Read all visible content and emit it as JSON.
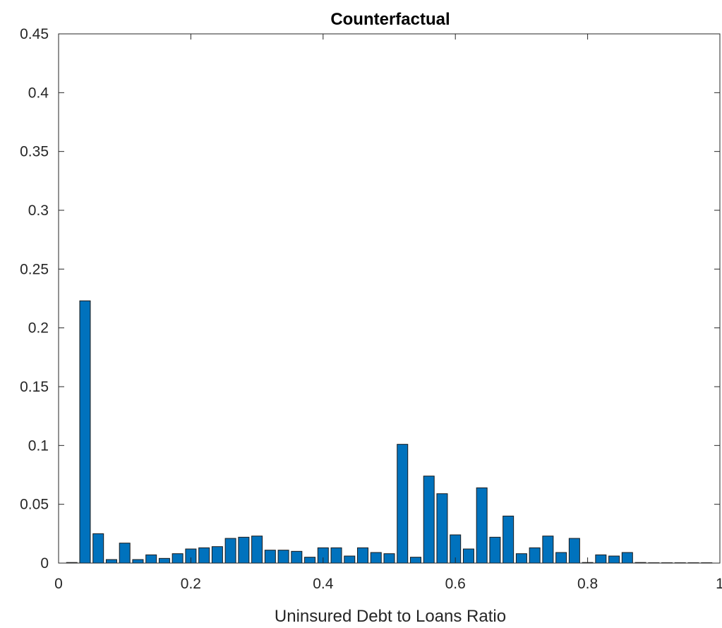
{
  "chart_data": {
    "type": "bar",
    "title": "Counterfactual",
    "xlabel": "Uninsured Debt to Loans Ratio",
    "ylabel": "",
    "xlim": [
      0,
      1
    ],
    "ylim": [
      0,
      0.45
    ],
    "xticks": [
      0,
      0.2,
      0.4,
      0.6,
      0.8,
      1
    ],
    "xtick_labels": [
      "0",
      "0.2",
      "0.4",
      "0.6",
      "0.8",
      "1"
    ],
    "yticks": [
      0,
      0.05,
      0.1,
      0.15,
      0.2,
      0.25,
      0.3,
      0.35,
      0.4,
      0.45
    ],
    "ytick_labels": [
      "0",
      "0.05",
      "0.1",
      "0.15",
      "0.2",
      "0.25",
      "0.3",
      "0.35",
      "0.4",
      "0.45"
    ],
    "grid": false,
    "bar_color": "#0072BD",
    "bin_width": 0.02,
    "x": [
      0.02,
      0.04,
      0.06,
      0.08,
      0.1,
      0.12,
      0.14,
      0.16,
      0.18,
      0.2,
      0.22,
      0.24,
      0.26,
      0.28,
      0.3,
      0.32,
      0.34,
      0.36,
      0.38,
      0.4,
      0.42,
      0.44,
      0.46,
      0.48,
      0.5,
      0.52,
      0.54,
      0.56,
      0.58,
      0.6,
      0.62,
      0.64,
      0.66,
      0.68,
      0.7,
      0.72,
      0.74,
      0.76,
      0.78,
      0.8,
      0.82,
      0.84,
      0.86,
      0.88,
      0.9,
      0.92,
      0.94,
      0.96,
      0.98
    ],
    "values": [
      0.0005,
      0.223,
      0.025,
      0.003,
      0.017,
      0.003,
      0.007,
      0.004,
      0.008,
      0.012,
      0.013,
      0.014,
      0.021,
      0.022,
      0.023,
      0.011,
      0.011,
      0.01,
      0.005,
      0.013,
      0.013,
      0.006,
      0.013,
      0.009,
      0.008,
      0.101,
      0.005,
      0.074,
      0.059,
      0.024,
      0.012,
      0.064,
      0.022,
      0.04,
      0.008,
      0.013,
      0.023,
      0.009,
      0.021,
      0.0005,
      0.007,
      0.006,
      0.009,
      0.0005,
      0,
      0,
      0,
      0,
      0
    ]
  }
}
